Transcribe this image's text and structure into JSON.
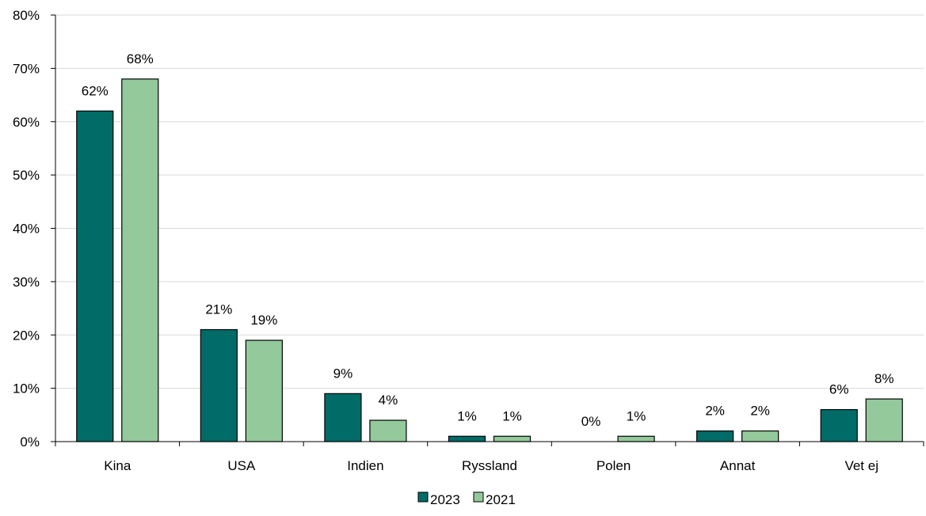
{
  "chart_data": {
    "type": "bar",
    "categories": [
      "Kina",
      "USA",
      "Indien",
      "Ryssland",
      "Polen",
      "Annat",
      "Vet ej"
    ],
    "series": [
      {
        "name": "2023",
        "values": [
          62,
          21,
          9,
          1,
          0,
          2,
          6
        ],
        "labels": [
          "62%",
          "21%",
          "9%",
          "1%",
          "0%",
          "2%",
          "6%"
        ],
        "color": "#006b67"
      },
      {
        "name": "2021",
        "values": [
          68,
          19,
          4,
          1,
          1,
          2,
          8
        ],
        "labels": [
          "68%",
          "19%",
          "4%",
          "1%",
          "1%",
          "2%",
          "8%"
        ],
        "color": "#94c99b"
      }
    ],
    "ylim": [
      0,
      80
    ],
    "yticks": [
      0,
      10,
      20,
      30,
      40,
      50,
      60,
      70,
      80
    ],
    "ytick_labels": [
      "0%",
      "10%",
      "20%",
      "30%",
      "40%",
      "50%",
      "60%",
      "70%",
      "80%"
    ],
    "grid": true,
    "legend_position": "bottom-center",
    "title": "",
    "xlabel": "",
    "ylabel": ""
  }
}
